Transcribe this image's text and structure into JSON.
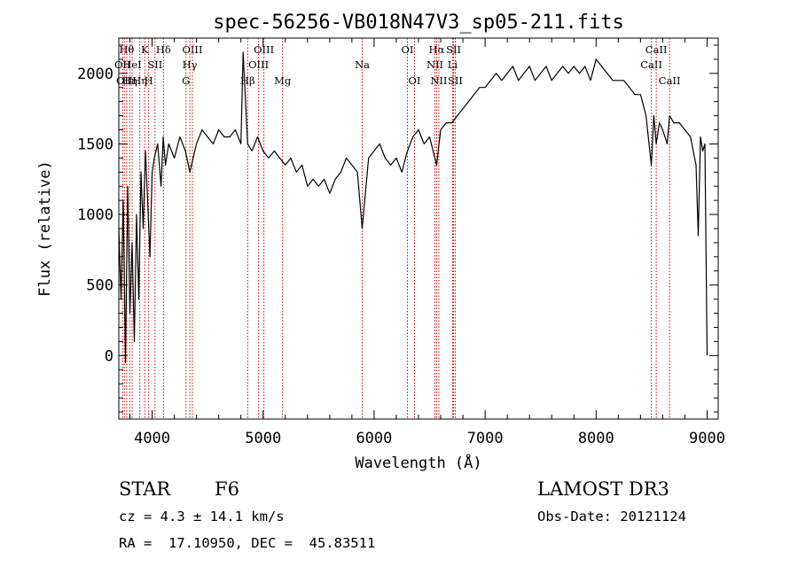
{
  "chart_data": {
    "type": "line",
    "title": "spec-56256-VB018N47V3_sp05-211.fits",
    "xlabel": "Wavelength (Å)",
    "ylabel": "Flux (relative)",
    "xlim": [
      3700,
      9100
    ],
    "ylim": [
      -450,
      2250
    ],
    "xticks": [
      4000,
      5000,
      6000,
      7000,
      8000,
      9000
    ],
    "yticks": [
      0,
      500,
      1000,
      1500,
      2000
    ],
    "grid": false,
    "series": [
      {
        "x": [
          3700,
          3720,
          3740,
          3760,
          3780,
          3800,
          3820,
          3840,
          3860,
          3880,
          3900,
          3920,
          3940,
          3960,
          3980,
          4000,
          4020,
          4050,
          4080,
          4100,
          4120,
          4150,
          4200,
          4250,
          4300,
          4340,
          4400,
          4450,
          4500,
          4550,
          4600,
          4650,
          4700,
          4750,
          4800,
          4820,
          4861,
          4900,
          4950,
          5000,
          5050,
          5100,
          5150,
          5200,
          5250,
          5300,
          5350,
          5400,
          5450,
          5500,
          5550,
          5600,
          5650,
          5700,
          5750,
          5800,
          5850,
          5893,
          5950,
          6000,
          6050,
          6100,
          6150,
          6200,
          6250,
          6300,
          6350,
          6400,
          6450,
          6500,
          6563,
          6600,
          6650,
          6700,
          6750,
          6800,
          6850,
          6900,
          6950,
          7000,
          7050,
          7100,
          7150,
          7200,
          7250,
          7300,
          7350,
          7400,
          7450,
          7500,
          7550,
          7600,
          7650,
          7700,
          7750,
          7800,
          7850,
          7900,
          7950,
          8000,
          8050,
          8100,
          8150,
          8200,
          8250,
          8300,
          8350,
          8400,
          8450,
          8498,
          8520,
          8542,
          8570,
          8600,
          8640,
          8662,
          8700,
          8750,
          8800,
          8850,
          8900,
          8920,
          8940,
          8960,
          8980,
          9000
        ],
        "y": [
          900,
          400,
          1100,
          -50,
          1200,
          300,
          800,
          100,
          1000,
          400,
          1300,
          900,
          1450,
          1100,
          700,
          1300,
          1400,
          1500,
          1200,
          1550,
          1350,
          1500,
          1400,
          1550,
          1450,
          1300,
          1500,
          1600,
          1550,
          1500,
          1600,
          1550,
          1550,
          1600,
          1500,
          2150,
          1500,
          1450,
          1550,
          1450,
          1400,
          1450,
          1400,
          1350,
          1400,
          1300,
          1350,
          1200,
          1250,
          1200,
          1250,
          1150,
          1250,
          1300,
          1400,
          1350,
          1300,
          900,
          1400,
          1450,
          1500,
          1400,
          1350,
          1400,
          1300,
          1450,
          1550,
          1600,
          1500,
          1550,
          1350,
          1600,
          1650,
          1650,
          1700,
          1750,
          1800,
          1850,
          1900,
          1900,
          1950,
          2000,
          1950,
          2000,
          2050,
          1950,
          2000,
          2050,
          1950,
          2000,
          2050,
          1950,
          2000,
          2050,
          2000,
          2050,
          2000,
          2050,
          1950,
          2100,
          2050,
          2000,
          1950,
          1950,
          1950,
          1900,
          1850,
          1850,
          1700,
          1350,
          1700,
          1500,
          1650,
          1600,
          1500,
          1700,
          1650,
          1650,
          1600,
          1550,
          1350,
          850,
          1550,
          1450,
          1500,
          0
        ]
      }
    ],
    "lines": [
      {
        "w": 3734,
        "t": "OII",
        "row": 1
      },
      {
        "w": 3750,
        "t": "OII",
        "row": 2
      },
      {
        "w": 3771,
        "t": "Hθ",
        "row": 0
      },
      {
        "w": 3798,
        "t": "Hη",
        "row": 2
      },
      {
        "w": 3820,
        "t": "HeI",
        "row": 1
      },
      {
        "w": 3889,
        "t": "Hη",
        "row": 2
      },
      {
        "w": 3934,
        "t": "K",
        "row": 0
      },
      {
        "w": 3969,
        "t": "H",
        "row": 2
      },
      {
        "w": 4026,
        "t": "SII",
        "row": 1
      },
      {
        "w": 4102,
        "t": "Hδ",
        "row": 0
      },
      {
        "w": 4305,
        "t": "G",
        "row": 2
      },
      {
        "w": 4340,
        "t": "Hγ",
        "row": 1
      },
      {
        "w": 4363,
        "t": "OIII",
        "row": 0
      },
      {
        "w": 4861,
        "t": "Hβ",
        "row": 2
      },
      {
        "w": 4959,
        "t": "OIII",
        "row": 1
      },
      {
        "w": 5007,
        "t": "OIII",
        "row": 0
      },
      {
        "w": 5175,
        "t": "Mg",
        "row": 2
      },
      {
        "w": 5893,
        "t": "Na",
        "row": 1
      },
      {
        "w": 6300,
        "t": "OI",
        "row": 0
      },
      {
        "w": 6364,
        "t": "OI",
        "row": 2
      },
      {
        "w": 6548,
        "t": "NII",
        "row": 1
      },
      {
        "w": 6563,
        "t": "Hα",
        "row": 0
      },
      {
        "w": 6583,
        "t": "NII",
        "row": 2
      },
      {
        "w": 6707,
        "t": "Li",
        "row": 1
      },
      {
        "w": 6716,
        "t": "SII",
        "row": 0
      },
      {
        "w": 6731,
        "t": "SII",
        "row": 2
      },
      {
        "w": 8498,
        "t": "CaII",
        "row": 1
      },
      {
        "w": 8542,
        "t": "CaII",
        "row": 0
      },
      {
        "w": 8662,
        "t": "CaII",
        "row": 2
      }
    ]
  },
  "info": {
    "class": "STAR",
    "subclass": "F6",
    "survey": "LAMOST DR3",
    "cz": "cz = 4.3 ± 14.1 km/s",
    "obsdate": "Obs-Date: 20121124",
    "radec": "RA =  17.10950, DEC =  45.83511"
  }
}
